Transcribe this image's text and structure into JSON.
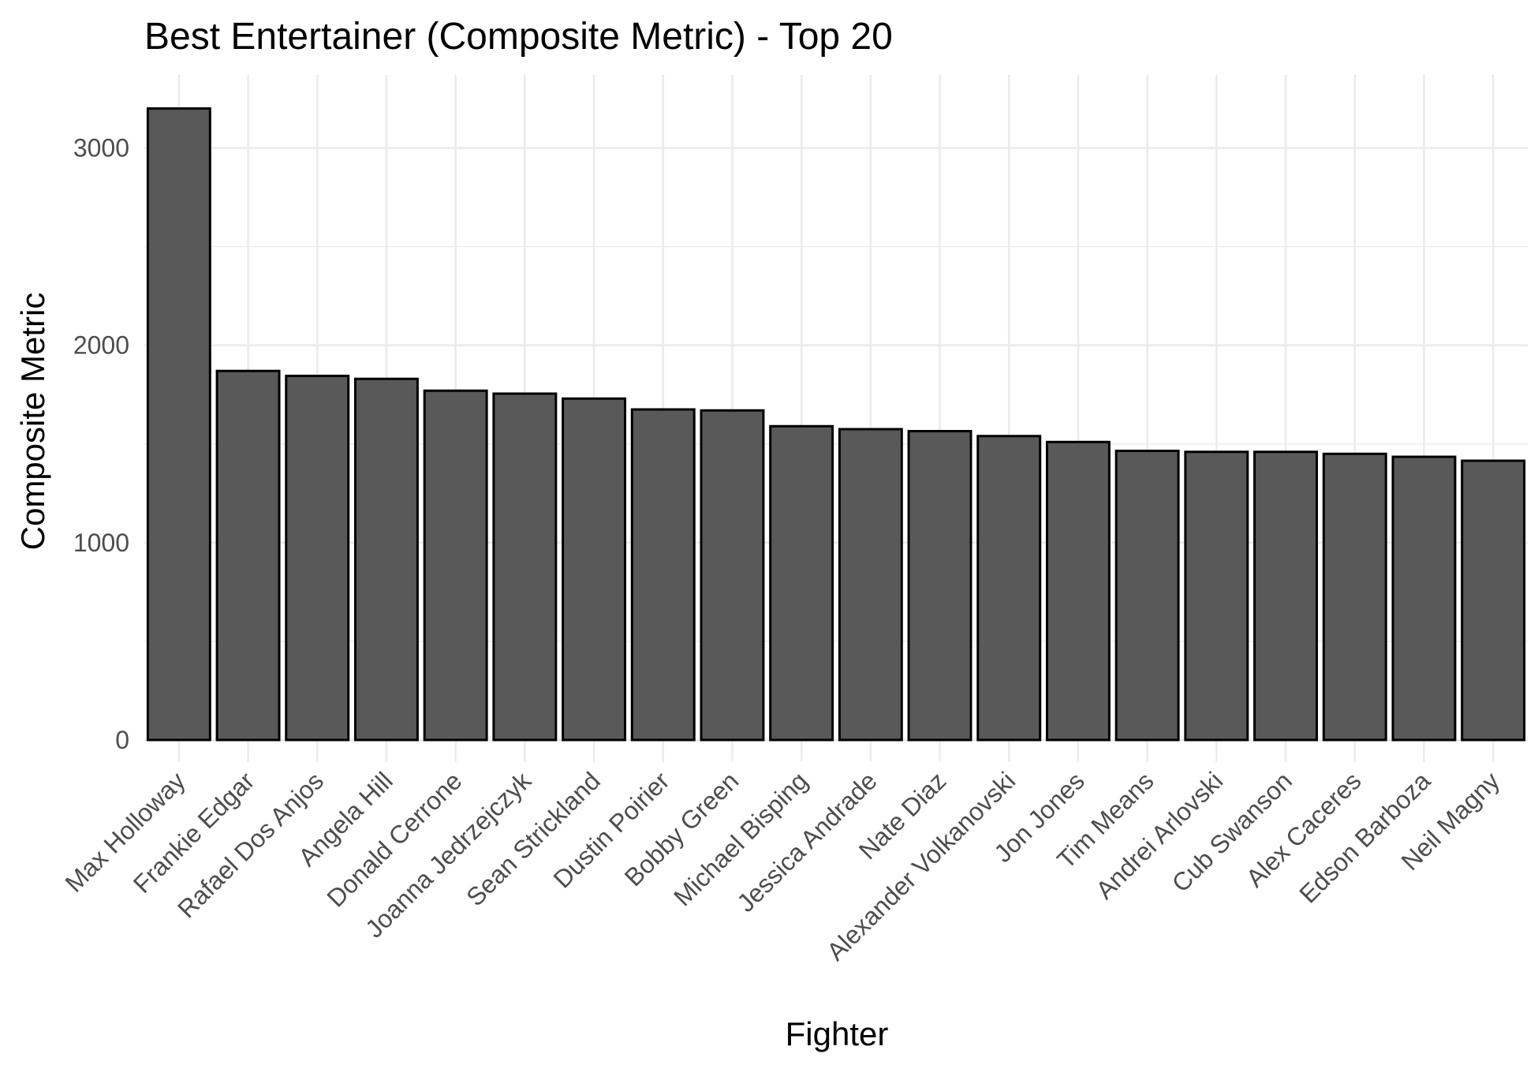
{
  "chart_data": {
    "type": "bar",
    "title": "Best Entertainer (Composite Metric) - Top 20",
    "xlabel": "Fighter",
    "ylabel": "Composite Metric",
    "categories": [
      "Max Holloway",
      "Frankie Edgar",
      "Rafael Dos Anjos",
      "Angela Hill",
      "Donald Cerrone",
      "Joanna Jedrzejczyk",
      "Sean Strickland",
      "Dustin Poirier",
      "Bobby Green",
      "Michael Bisping",
      "Jessica Andrade",
      "Nate Diaz",
      "Alexander Volkanovski",
      "Jon Jones",
      "Tim Means",
      "Andrei Arlovski",
      "Cub Swanson",
      "Alex Caceres",
      "Edson Barboza",
      "Neil Magny"
    ],
    "values": [
      3200,
      1870,
      1845,
      1830,
      1770,
      1755,
      1730,
      1675,
      1670,
      1590,
      1575,
      1565,
      1540,
      1510,
      1465,
      1460,
      1460,
      1450,
      1435,
      1415
    ],
    "yticks": [
      0,
      1000,
      2000,
      3000
    ],
    "ylim": [
      -40,
      3370
    ],
    "bar_color": "#595959",
    "bar_outline": "#000000",
    "grid_color": "#ebebeb",
    "grid": true,
    "legend": "none"
  }
}
